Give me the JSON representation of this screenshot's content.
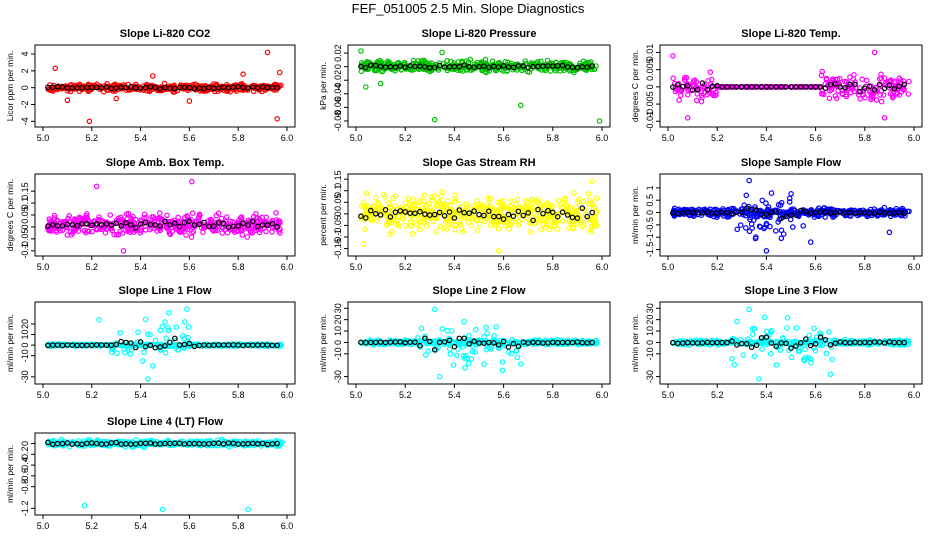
{
  "title": "FEF_051005  2.5 Min. Slope Diagnostics",
  "colors": {
    "red": "#ff0000",
    "green": "#00c000",
    "magenta": "#ff00ff",
    "yellow": "#ffff00",
    "blue": "#0000ff",
    "cyan": "#00ffff",
    "black": "#000000"
  },
  "chart_data": [
    {
      "type": "scatter",
      "title": "Slope Li-820 CO2",
      "ylabel": "Licor ppm per min.",
      "xlabel": "",
      "xlim": [
        5.0,
        6.0
      ],
      "ylim": [
        -4.2,
        4.6
      ],
      "xticks": [
        "5.0",
        "5.2",
        "5.4",
        "5.6",
        "5.8",
        "6.0"
      ],
      "yticks": [
        -4,
        -2,
        0,
        2,
        4
      ],
      "series_color": "red",
      "band": [
        -0.6,
        0.6
      ],
      "n_points": 420,
      "outliers": [
        [
          5.05,
          2.3
        ],
        [
          5.1,
          -1.5
        ],
        [
          5.19,
          -4.0
        ],
        [
          5.3,
          -1.3
        ],
        [
          5.45,
          1.4
        ],
        [
          5.6,
          -1.6
        ],
        [
          5.82,
          1.6
        ],
        [
          5.92,
          4.2
        ],
        [
          5.96,
          -3.7
        ],
        [
          5.97,
          1.8
        ]
      ]
    },
    {
      "type": "scatter",
      "title": "Slope Li-820 Pressure",
      "ylabel": "kPa per min.",
      "xlabel": "",
      "xlim": [
        5.0,
        6.0
      ],
      "ylim": [
        -0.083,
        0.026
      ],
      "xticks": [
        "5.0",
        "5.2",
        "5.4",
        "5.6",
        "5.8",
        "6.0"
      ],
      "yticks": [
        -0.08,
        -0.06,
        -0.04,
        -0.02,
        0.0,
        0.02
      ],
      "series_color": "green",
      "band": [
        -0.012,
        0.012
      ],
      "n_points": 420,
      "outliers": [
        [
          5.02,
          0.023
        ],
        [
          5.04,
          -0.03
        ],
        [
          5.1,
          -0.025
        ],
        [
          5.32,
          -0.078
        ],
        [
          5.35,
          0.021
        ],
        [
          5.67,
          -0.057
        ],
        [
          5.99,
          -0.08
        ]
      ]
    },
    {
      "type": "scatter",
      "title": "Slope Li-820 Temp.",
      "ylabel": "degrees C per min.",
      "xlabel": "",
      "xlim": [
        5.0,
        6.0
      ],
      "ylim": [
        -0.0105,
        0.011
      ],
      "xticks": [
        "5.0",
        "5.2",
        "5.4",
        "5.6",
        "5.8",
        "6.0"
      ],
      "yticks": [
        -0.01,
        -0.005,
        0.0,
        0.005,
        0.01
      ],
      "series_color": "magenta",
      "band": [
        -0.006,
        0.006
      ],
      "n_points": 340,
      "flat_range": [
        5.2,
        5.62
      ],
      "outliers": [
        [
          5.02,
          0.009
        ],
        [
          5.08,
          -0.009
        ],
        [
          5.84,
          0.01
        ],
        [
          5.88,
          -0.009
        ]
      ]
    },
    {
      "type": "scatter",
      "title": "Slope Amb. Box Temp.",
      "ylabel": "degrees C per min.",
      "xlabel": "",
      "xlim": [
        5.0,
        6.0
      ],
      "ylim": [
        -0.105,
        0.205
      ],
      "xticks": [
        "5.0",
        "5.2",
        "5.4",
        "5.6",
        "5.8",
        "6.0"
      ],
      "yticks": [
        -0.1,
        -0.05,
        0.0,
        0.05,
        0.1,
        0.15
      ],
      "series_color": "magenta",
      "band": [
        -0.05,
        0.07
      ],
      "n_points": 460,
      "outliers": [
        [
          5.22,
          0.17
        ],
        [
          5.61,
          0.19
        ],
        [
          5.33,
          -0.1
        ]
      ]
    },
    {
      "type": "scatter",
      "title": "Slope Gas Stream RH",
      "ylabel": "percent per min.",
      "xlabel": "",
      "xlim": [
        5.0,
        6.0
      ],
      "ylim": [
        -0.165,
        0.155
      ],
      "xticks": [
        "5.0",
        "5.2",
        "5.4",
        "5.6",
        "5.8",
        "6.0"
      ],
      "yticks": [
        -0.15,
        -0.1,
        -0.05,
        0.0,
        0.05,
        0.1,
        0.15
      ],
      "series_color": "yellow",
      "band": [
        -0.11,
        0.11
      ],
      "n_points": 470,
      "outliers": [
        [
          5.58,
          -0.16
        ],
        [
          5.03,
          -0.13
        ],
        [
          5.96,
          0.14
        ]
      ]
    },
    {
      "type": "scatter",
      "title": "Slope Sample Flow",
      "ylabel": "ml/min per min.",
      "xlabel": "",
      "xlim": [
        5.0,
        6.0
      ],
      "ylim": [
        -1.6,
        1.4
      ],
      "xticks": [
        "5.0",
        "5.2",
        "5.4",
        "5.6",
        "5.8",
        "6.0"
      ],
      "yticks": [
        -1.5,
        -1.0,
        -0.5,
        0.0,
        0.5,
        1.0
      ],
      "series_color": "blue",
      "band": [
        -0.25,
        0.25
      ],
      "n_points": 440,
      "spread_range": [
        5.28,
        5.55
      ],
      "spread_band": [
        -1.5,
        1.3
      ],
      "outliers": [
        [
          5.33,
          1.3
        ],
        [
          5.4,
          -1.55
        ],
        [
          5.58,
          -1.2
        ],
        [
          5.9,
          -0.8
        ]
      ]
    },
    {
      "type": "scatter",
      "title": "Slope Line 1 Flow",
      "ylabel": "ml/min per min.",
      "xlabel": "",
      "xlim": [
        5.0,
        6.0
      ],
      "ylim": [
        -33,
        37
      ],
      "xticks": [
        "5.0",
        "5.2",
        "5.4",
        "5.6",
        "5.8",
        "6.0"
      ],
      "yticks": [
        -30,
        -10,
        0,
        10,
        20
      ],
      "series_color": "cyan",
      "band": [
        -1.5,
        1.5
      ],
      "n_points": 420,
      "spread_range": [
        5.28,
        5.62
      ],
      "spread_band": [
        -30,
        34
      ],
      "outliers": [
        [
          5.23,
          24
        ],
        [
          5.59,
          34
        ],
        [
          5.43,
          -32
        ]
      ]
    },
    {
      "type": "scatter",
      "title": "Slope Line 2 Flow",
      "ylabel": "ml/min per min.",
      "xlabel": "",
      "xlim": [
        5.0,
        6.0
      ],
      "ylim": [
        -33,
        32
      ],
      "xticks": [
        "5.0",
        "5.2",
        "5.4",
        "5.6",
        "5.8",
        "6.0"
      ],
      "yticks": [
        -30,
        -10,
        0,
        10,
        20,
        30
      ],
      "series_color": "cyan",
      "band": [
        -3,
        3
      ],
      "n_points": 420,
      "spread_range": [
        5.25,
        5.67
      ],
      "spread_band": [
        -30,
        30
      ],
      "outliers": [
        [
          5.32,
          29
        ],
        [
          5.34,
          -30
        ],
        [
          5.67,
          -19
        ]
      ]
    },
    {
      "type": "scatter",
      "title": "Slope Line 3 Flow",
      "ylabel": "ml/min per min.",
      "xlabel": "",
      "xlim": [
        5.0,
        6.0
      ],
      "ylim": [
        -33,
        32
      ],
      "xticks": [
        "5.0",
        "5.2",
        "5.4",
        "5.6",
        "5.8",
        "6.0"
      ],
      "yticks": [
        -30,
        -10,
        0,
        10,
        20,
        30
      ],
      "series_color": "cyan",
      "band": [
        -3,
        3
      ],
      "n_points": 420,
      "spread_range": [
        5.25,
        5.67
      ],
      "spread_band": [
        -30,
        30
      ],
      "outliers": [
        [
          5.33,
          29
        ],
        [
          5.37,
          -32
        ],
        [
          5.66,
          -28
        ]
      ]
    },
    {
      "type": "scatter",
      "title": "Slope Line 4 (LT) Flow",
      "ylabel": "ml/min per min.",
      "xlabel": "",
      "xlim": [
        5.0,
        6.0
      ],
      "ylim": [
        -1.25,
        0.12
      ],
      "xticks": [
        "5.0",
        "5.2",
        "5.4",
        "5.6",
        "5.8",
        "6.0"
      ],
      "yticks": [
        -1.2,
        -0.8,
        -0.6,
        -0.4,
        -0.2,
        0.0
      ],
      "series_color": "cyan",
      "band": [
        -0.08,
        0.08
      ],
      "n_points": 420,
      "outliers": [
        [
          5.17,
          -1.15
        ],
        [
          5.49,
          -1.22
        ],
        [
          5.84,
          -1.22
        ]
      ]
    }
  ]
}
